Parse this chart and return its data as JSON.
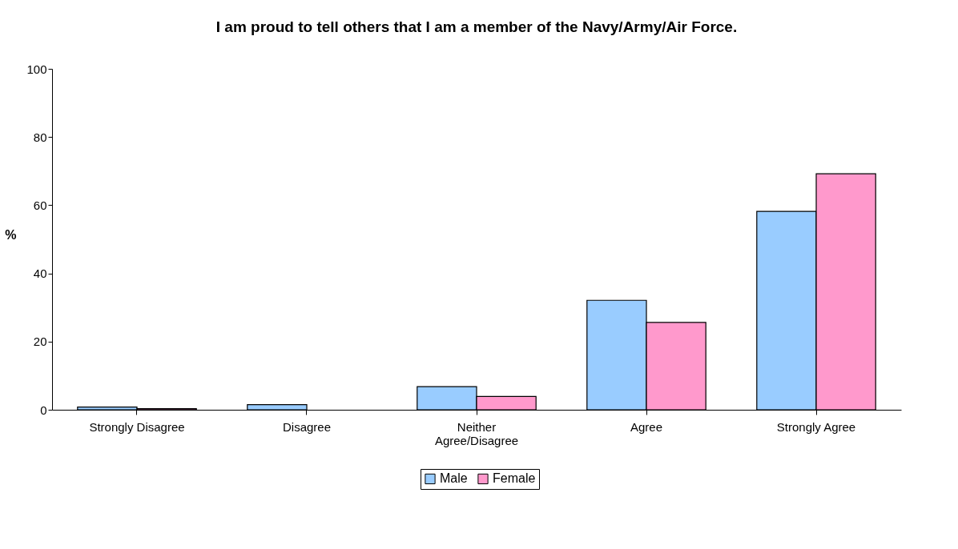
{
  "chart_data": {
    "type": "bar",
    "title": "I am proud to tell others that I am a member of the Navy/Army/Air Force.",
    "ylabel": "%",
    "categories": [
      "Strongly Disagree",
      "Disagree",
      "Neither Agree/Disagree",
      "Agree",
      "Strongly Agree"
    ],
    "series": [
      {
        "name": "Male",
        "color": "#99ccff",
        "values": [
          0.8,
          1.5,
          6.8,
          32.1,
          58.2
        ]
      },
      {
        "name": "Female",
        "color": "#ff99cc",
        "values": [
          0.3,
          null,
          3.9,
          25.6,
          69.2
        ]
      }
    ],
    "ylim": [
      0,
      100
    ],
    "yticks": [
      0,
      20,
      40,
      60,
      80,
      100
    ],
    "grid": false,
    "legend": "bottom"
  }
}
